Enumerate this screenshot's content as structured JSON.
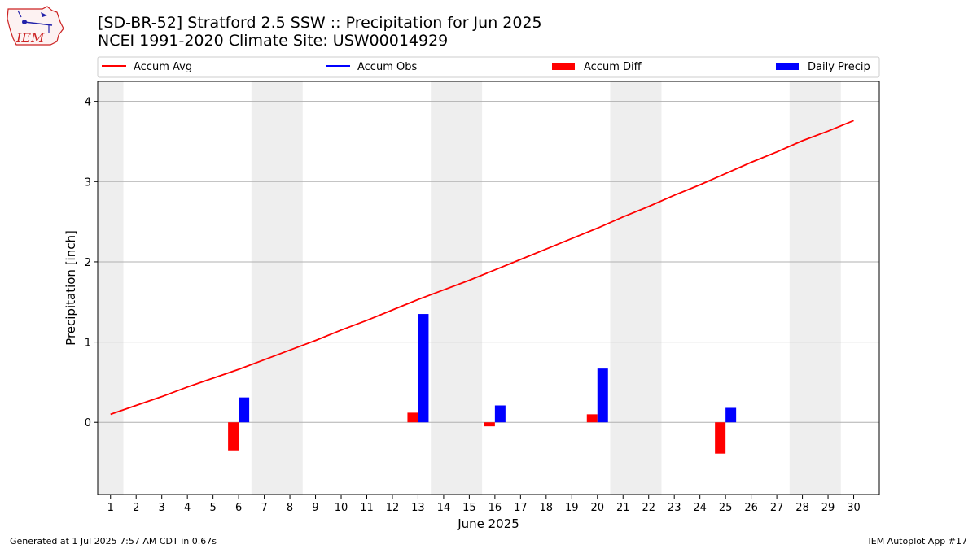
{
  "header": {
    "title_line1": "[SD-BR-52] Stratford 2.5 SSW :: Precipitation for Jun 2025",
    "title_line2": "NCEI 1991-2020 Climate Site: USW00014929",
    "logo_text": "IEM"
  },
  "footer": {
    "left": "Generated at 1 Jul 2025 7:57 AM CDT in 0.67s",
    "right": "IEM Autoplot App #17"
  },
  "colors": {
    "accum_avg": "#ff0000",
    "accum_obs": "#0000ff",
    "accum_diff": "#ff0000",
    "daily_precip": "#0000ff",
    "weekend_shade": "#eeeeee",
    "grid": "#b0b0b0"
  },
  "chart_data": {
    "type": "bar",
    "title": "[SD-BR-52] Stratford 2.5 SSW :: Precipitation for Jun 2025",
    "subtitle": "NCEI 1991-2020 Climate Site: USW00014929",
    "xlabel": "June 2025",
    "ylabel": "Precipitation [inch]",
    "xlim": [
      0.5,
      31.0
    ],
    "ylim": [
      -0.9,
      4.25
    ],
    "x_ticks": [
      1,
      2,
      3,
      4,
      5,
      6,
      7,
      8,
      9,
      10,
      11,
      12,
      13,
      14,
      15,
      16,
      17,
      18,
      19,
      20,
      21,
      22,
      23,
      24,
      25,
      26,
      27,
      28,
      29,
      30
    ],
    "y_ticks": [
      0,
      1,
      2,
      3,
      4
    ],
    "grid": "horizontal",
    "legend": {
      "placement": "top",
      "entries": [
        {
          "label": "Accum Avg",
          "kind": "line",
          "color": "#ff0000"
        },
        {
          "label": "Accum Obs",
          "kind": "line",
          "color": "#0000ff"
        },
        {
          "label": "Accum Diff",
          "kind": "bar",
          "color": "#ff0000"
        },
        {
          "label": "Daily Precip",
          "kind": "bar",
          "color": "#0000ff"
        }
      ]
    },
    "shaded_day_ranges": [
      [
        0.5,
        1.5
      ],
      [
        6.5,
        8.5
      ],
      [
        13.5,
        15.5
      ],
      [
        20.5,
        22.5
      ],
      [
        27.5,
        29.5
      ]
    ],
    "series": [
      {
        "name": "Accum Avg",
        "kind": "line",
        "x": [
          1,
          2,
          3,
          4,
          5,
          6,
          7,
          8,
          9,
          10,
          11,
          12,
          13,
          14,
          15,
          16,
          17,
          18,
          19,
          20,
          21,
          22,
          23,
          24,
          25,
          26,
          27,
          28,
          29,
          30
        ],
        "values": [
          0.1,
          0.21,
          0.32,
          0.44,
          0.55,
          0.66,
          0.78,
          0.9,
          1.02,
          1.15,
          1.27,
          1.4,
          1.53,
          1.65,
          1.77,
          1.9,
          2.03,
          2.16,
          2.29,
          2.42,
          2.56,
          2.69,
          2.83,
          2.96,
          3.1,
          3.24,
          3.37,
          3.51,
          3.63,
          3.76
        ]
      },
      {
        "name": "Accum Diff",
        "kind": "bar",
        "x": [
          6,
          13,
          16,
          20,
          25
        ],
        "values": [
          -0.35,
          0.12,
          -0.05,
          0.1,
          -0.39
        ]
      },
      {
        "name": "Daily Precip",
        "kind": "bar",
        "x": [
          6,
          13,
          16,
          20,
          25
        ],
        "values": [
          0.31,
          1.35,
          0.21,
          0.67,
          0.18
        ]
      }
    ]
  }
}
